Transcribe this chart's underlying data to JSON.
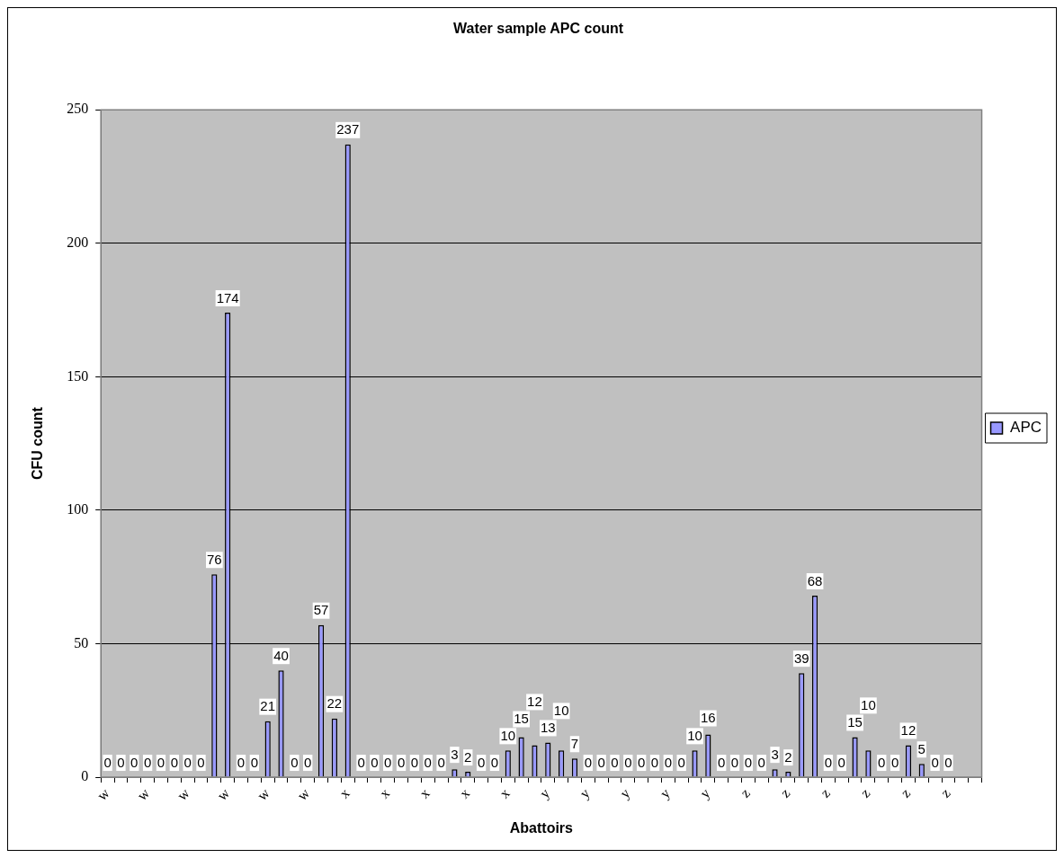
{
  "chart_data": {
    "type": "bar",
    "title": "Water sample APC count",
    "xlabel": "Abattoirs",
    "ylabel": "CFU count",
    "categories": [
      "w",
      null,
      null,
      "w",
      null,
      null,
      "w",
      null,
      null,
      "w",
      null,
      null,
      "w",
      null,
      null,
      "w",
      null,
      null,
      "x",
      null,
      null,
      "x",
      null,
      null,
      "x",
      null,
      null,
      "x",
      null,
      null,
      "x",
      null,
      null,
      "y",
      null,
      null,
      "y",
      null,
      null,
      "y",
      null,
      null,
      "y",
      null,
      null,
      "y",
      null,
      null,
      "z",
      null,
      null,
      "z",
      null,
      null,
      "z",
      null,
      null,
      "z",
      null,
      null,
      "z",
      null,
      null,
      "z",
      null,
      null
    ],
    "series": [
      {
        "name": "APC",
        "color": "#9999ff",
        "values": [
          0,
          0,
          0,
          0,
          0,
          0,
          0,
          0,
          76,
          174,
          0,
          0,
          21,
          40,
          0,
          0,
          57,
          22,
          237,
          0,
          0,
          0,
          0,
          0,
          0,
          0,
          3,
          2,
          0,
          0,
          10,
          15,
          12,
          13,
          10,
          7,
          0,
          0,
          0,
          0,
          0,
          0,
          0,
          0,
          10,
          16,
          0,
          0,
          0,
          0,
          3,
          2,
          39,
          68,
          0,
          0,
          15,
          10,
          0,
          0,
          12,
          5,
          0,
          0,
          null,
          null
        ]
      }
    ],
    "ylim": [
      0,
      250
    ],
    "yticks": [
      0,
      50,
      100,
      150,
      200,
      250
    ],
    "grid": "y",
    "legend": "right",
    "data_labels": true
  }
}
